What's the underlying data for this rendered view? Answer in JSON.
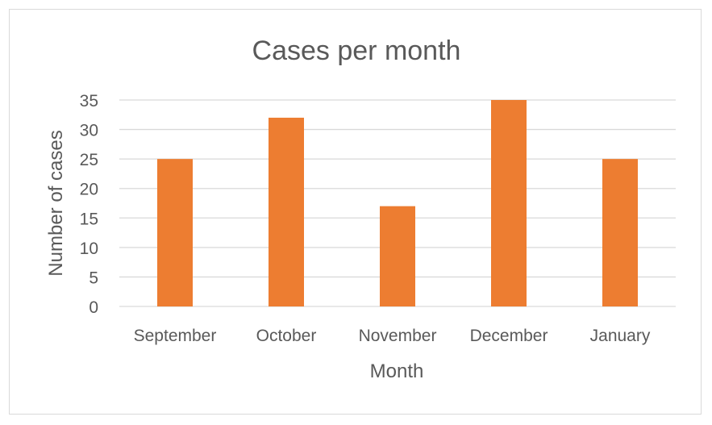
{
  "chart_data": {
    "type": "bar",
    "title": "Cases per month",
    "xlabel": "Month",
    "ylabel": "Number of cases",
    "categories": [
      "September",
      "October",
      "November",
      "December",
      "January"
    ],
    "values": [
      25,
      32,
      17,
      35,
      25
    ],
    "ylim": [
      0,
      35
    ],
    "yticks": [
      0,
      5,
      10,
      15,
      20,
      25,
      30,
      35
    ],
    "grid": true,
    "legend": "none",
    "colors": {
      "bar": "#ed7d31",
      "grid": "#d9d9d9",
      "text": "#595959"
    }
  }
}
